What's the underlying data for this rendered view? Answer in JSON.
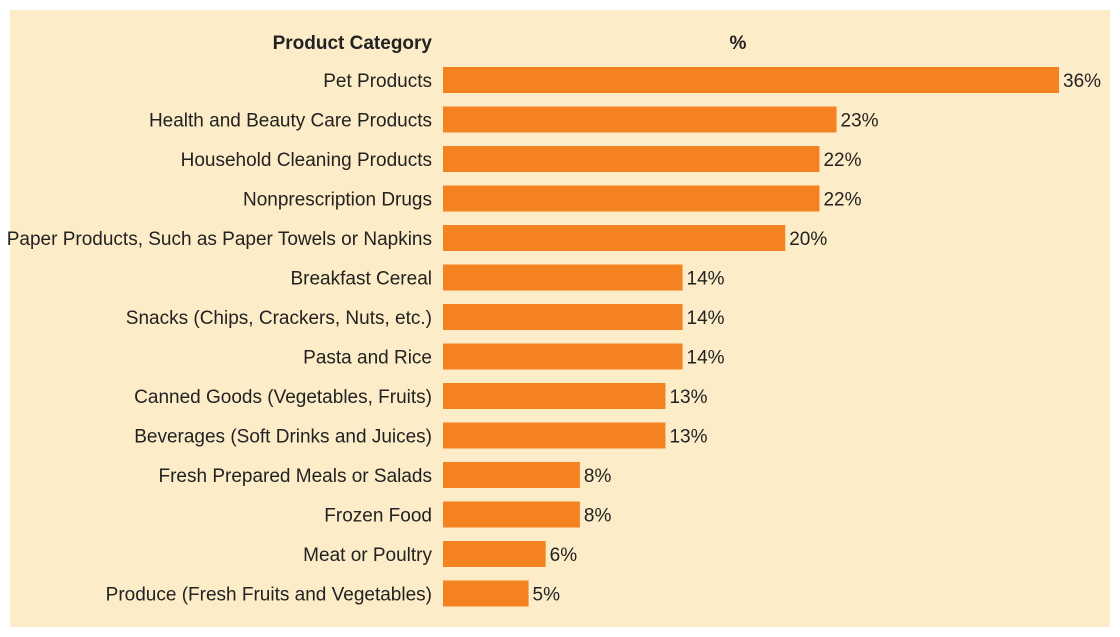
{
  "header": {
    "category_label": "Product Category",
    "value_label": "%"
  },
  "colors": {
    "bar": "#f58220",
    "background": "#fdecc8",
    "text": "#222222"
  },
  "chart_data": {
    "type": "bar",
    "orientation": "horizontal",
    "categories": [
      "Pet Products",
      "Health and Beauty Care Products",
      "Household Cleaning Products",
      "Nonprescription Drugs",
      "Paper Products, Such as Paper Towels or Napkins",
      "Breakfast Cereal",
      "Snacks (Chips, Crackers, Nuts, etc.)",
      "Pasta and Rice",
      "Canned Goods (Vegetables, Fruits)",
      "Beverages (Soft Drinks and Juices)",
      "Fresh Prepared Meals or Salads",
      "Frozen Food",
      "Meat or Poultry",
      "Produce (Fresh Fruits and Vegetables)"
    ],
    "values": [
      36,
      23,
      22,
      22,
      20,
      14,
      14,
      14,
      13,
      13,
      8,
      8,
      6,
      5
    ],
    "value_labels": [
      "36%",
      "23%",
      "22%",
      "22%",
      "20%",
      "14%",
      "14%",
      "14%",
      "13%",
      "13%",
      "8%",
      "8%",
      "6%",
      "5%"
    ],
    "xlim": [
      0,
      36
    ],
    "grid": false,
    "legend": "none"
  }
}
